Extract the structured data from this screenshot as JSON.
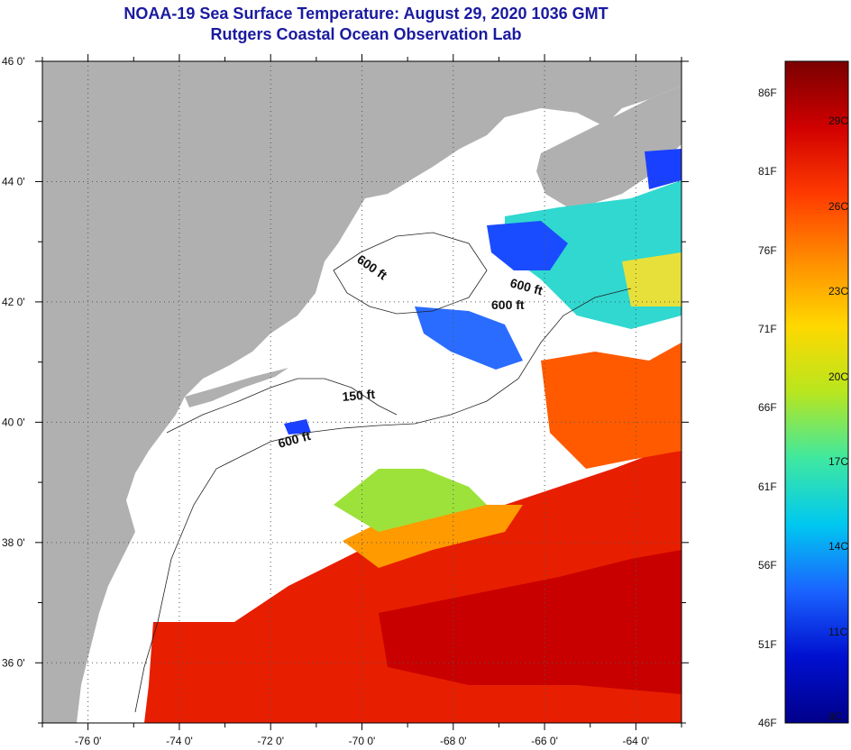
{
  "title": {
    "line1": "NOAA-19 Sea Surface Temperature:  August 29, 2020 1036 GMT",
    "line2": "Rutgers Coastal Ocean Observation Lab"
  },
  "map": {
    "lat_ticks": [
      "46 0'",
      "44 0'",
      "42 0'",
      "40 0'",
      "38 0'",
      "36 0'"
    ],
    "lon_ticks": [
      "-76 0'",
      "-74 0'",
      "-72 0'",
      "-70 0'",
      "-68 0'",
      "-66 0'",
      "-64 0'"
    ],
    "lat_range": [
      35,
      46
    ],
    "lon_range": [
      -77,
      -63
    ],
    "contour_labels": [
      "600 ft",
      "600 ft",
      "600 ft",
      "150 ft",
      "600 ft"
    ],
    "colors": {
      "land": "#b0b0b0",
      "no_data": "#ffffff",
      "grid": "#555555"
    }
  },
  "colorbar": {
    "f_labels": [
      "86F",
      "81F",
      "76F",
      "71F",
      "66F",
      "61F",
      "56F",
      "51F",
      "46F"
    ],
    "c_labels": [
      "29C",
      "26C",
      "23C",
      "20C",
      "17C",
      "14C",
      "11C",
      "8C"
    ],
    "f_values": [
      86,
      81,
      76,
      71,
      66,
      61,
      56,
      51,
      46
    ],
    "c_values": [
      29,
      26,
      23,
      20,
      17,
      14,
      11,
      8
    ],
    "min_f": 46,
    "max_f": 88,
    "gradient": [
      "#7a0000",
      "#d00000",
      "#ff3a00",
      "#ff8c00",
      "#ffd800",
      "#b8e61e",
      "#3fe8a0",
      "#00c8f0",
      "#1a64ff",
      "#0010d0",
      "#00008a"
    ]
  }
}
